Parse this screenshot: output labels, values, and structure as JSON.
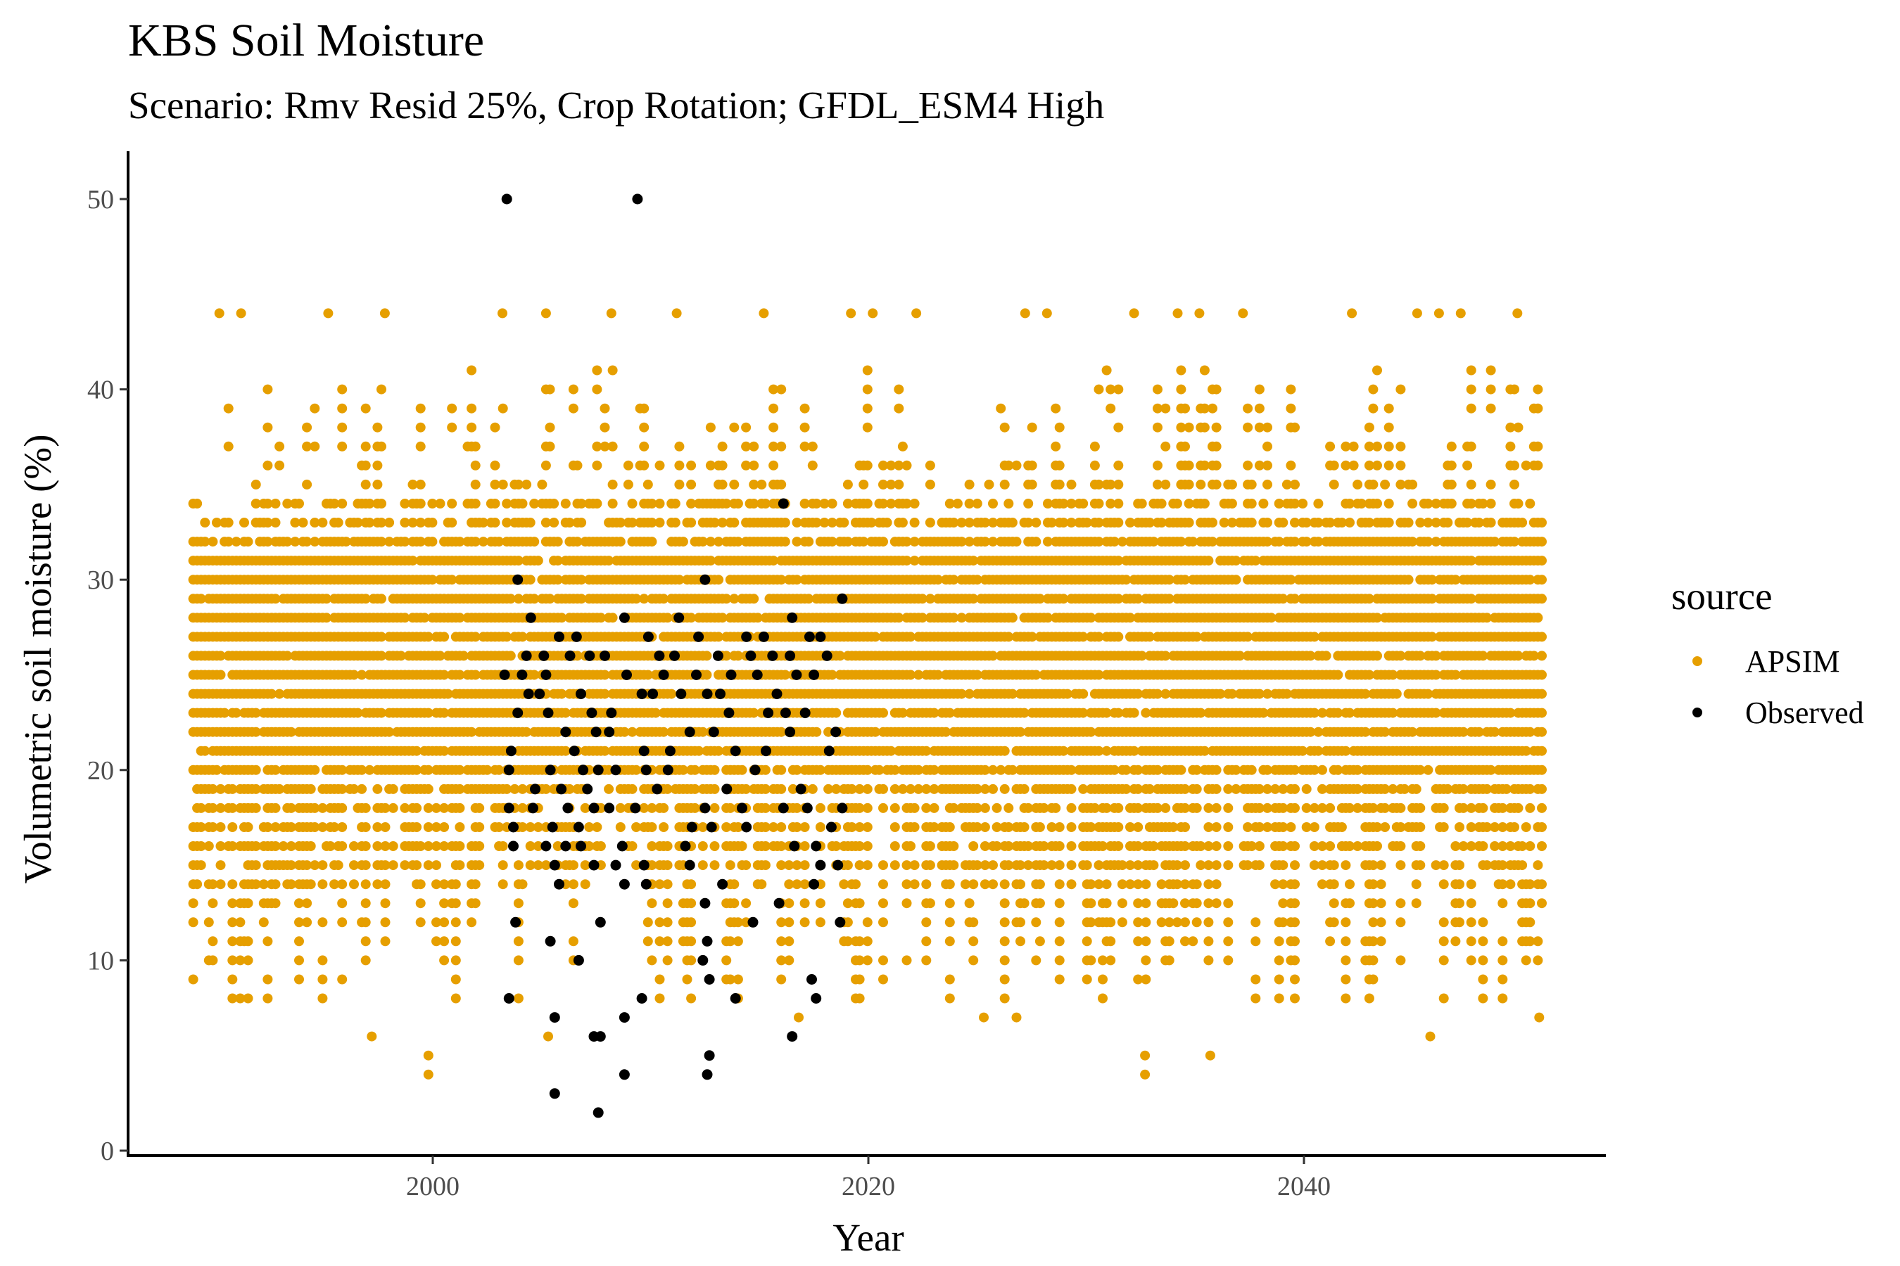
{
  "chart_data": {
    "type": "scatter",
    "title": "KBS Soil Moisture",
    "subtitle": "Scenario: Rmv Resid 25%, Crop Rotation; GFDL_ESM4 High",
    "xlabel": "Year",
    "ylabel": "Volumetric soil moisture (%)",
    "xlim": [
      1987,
      2054
    ],
    "ylim": [
      0,
      52
    ],
    "x_ticks": [
      2000,
      2020,
      2040
    ],
    "y_ticks": [
      0,
      10,
      20,
      30,
      40,
      50
    ],
    "grid": false,
    "legend": {
      "title": "source",
      "placement": "right",
      "entries": [
        {
          "label": "APSIM",
          "color": "#E69F00"
        },
        {
          "label": "Observed",
          "color": "#000000"
        }
      ]
    },
    "series": [
      {
        "name": "APSIM",
        "color": "#E69F00",
        "x_range": [
          1989,
          2051
        ],
        "core_band": [
          20,
          32
        ],
        "typical_min": 8,
        "typical_max": 44,
        "min_points": [
          [
            1999.8,
            4
          ],
          [
            1999.8,
            5
          ],
          [
            1997.2,
            6
          ],
          [
            2005.3,
            6
          ],
          [
            2032.7,
            4
          ],
          [
            2032.7,
            5
          ],
          [
            2035.7,
            5
          ],
          [
            2045.8,
            6
          ],
          [
            2026.8,
            7
          ],
          [
            2050.8,
            7
          ],
          [
            2025.3,
            7
          ],
          [
            2016.8,
            7
          ]
        ],
        "max_points": [
          [
            1990.2,
            44
          ],
          [
            1991.2,
            44
          ],
          [
            1995.2,
            44
          ],
          [
            1997.8,
            44
          ],
          [
            2003.2,
            44
          ],
          [
            2005.2,
            44
          ],
          [
            2008.2,
            44
          ],
          [
            2011.2,
            44
          ],
          [
            2015.2,
            44
          ],
          [
            2019.2,
            44
          ],
          [
            2020.2,
            44
          ],
          [
            2022.2,
            44
          ],
          [
            2027.2,
            44
          ],
          [
            2028.2,
            44
          ],
          [
            2032.2,
            44
          ],
          [
            2034.2,
            44
          ],
          [
            2035.2,
            44
          ],
          [
            2037.2,
            44
          ],
          [
            2042.2,
            44
          ],
          [
            2045.2,
            44
          ],
          [
            2046.2,
            44
          ],
          [
            2047.2,
            44
          ],
          [
            2049.8,
            44
          ]
        ]
      },
      {
        "name": "Observed",
        "color": "#000000",
        "points": [
          [
            2003.4,
            50
          ],
          [
            2009.4,
            50
          ],
          [
            2016.1,
            34
          ],
          [
            2018.8,
            29
          ],
          [
            2003.9,
            30
          ],
          [
            2012.5,
            30
          ],
          [
            2004.5,
            28
          ],
          [
            2008.8,
            28
          ],
          [
            2011.3,
            28
          ],
          [
            2016.5,
            28
          ],
          [
            2005.8,
            27
          ],
          [
            2006.6,
            27
          ],
          [
            2009.9,
            27
          ],
          [
            2012.2,
            27
          ],
          [
            2014.4,
            27
          ],
          [
            2015.2,
            27
          ],
          [
            2017.3,
            27
          ],
          [
            2017.8,
            27
          ],
          [
            2004.3,
            26
          ],
          [
            2005.1,
            26
          ],
          [
            2006.3,
            26
          ],
          [
            2007.2,
            26
          ],
          [
            2007.9,
            26
          ],
          [
            2010.4,
            26
          ],
          [
            2011.1,
            26
          ],
          [
            2013.1,
            26
          ],
          [
            2014.6,
            26
          ],
          [
            2015.6,
            26
          ],
          [
            2016.4,
            26
          ],
          [
            2018.1,
            26
          ],
          [
            2003.3,
            25
          ],
          [
            2004.1,
            25
          ],
          [
            2005.2,
            25
          ],
          [
            2008.9,
            25
          ],
          [
            2010.6,
            25
          ],
          [
            2012.1,
            25
          ],
          [
            2013.7,
            25
          ],
          [
            2014.9,
            25
          ],
          [
            2016.7,
            25
          ],
          [
            2017.5,
            25
          ],
          [
            2004.4,
            24
          ],
          [
            2004.9,
            24
          ],
          [
            2006.8,
            24
          ],
          [
            2009.6,
            24
          ],
          [
            2010.1,
            24
          ],
          [
            2011.4,
            24
          ],
          [
            2012.6,
            24
          ],
          [
            2013.2,
            24
          ],
          [
            2015.8,
            24
          ],
          [
            2003.9,
            23
          ],
          [
            2005.3,
            23
          ],
          [
            2007.3,
            23
          ],
          [
            2008.2,
            23
          ],
          [
            2013.6,
            23
          ],
          [
            2015.4,
            23
          ],
          [
            2016.2,
            23
          ],
          [
            2017.1,
            23
          ],
          [
            2006.1,
            22
          ],
          [
            2007.5,
            22
          ],
          [
            2008.1,
            22
          ],
          [
            2011.8,
            22
          ],
          [
            2012.9,
            22
          ],
          [
            2016.4,
            22
          ],
          [
            2018.5,
            22
          ],
          [
            2003.6,
            21
          ],
          [
            2006.5,
            21
          ],
          [
            2009.7,
            21
          ],
          [
            2010.9,
            21
          ],
          [
            2013.9,
            21
          ],
          [
            2015.3,
            21
          ],
          [
            2018.2,
            21
          ],
          [
            2003.5,
            20
          ],
          [
            2005.4,
            20
          ],
          [
            2006.9,
            20
          ],
          [
            2007.6,
            20
          ],
          [
            2008.4,
            20
          ],
          [
            2009.8,
            20
          ],
          [
            2010.8,
            20
          ],
          [
            2014.8,
            20
          ],
          [
            2004.7,
            19
          ],
          [
            2005.9,
            19
          ],
          [
            2007.1,
            19
          ],
          [
            2010.3,
            19
          ],
          [
            2013.5,
            19
          ],
          [
            2016.9,
            19
          ],
          [
            2003.5,
            18
          ],
          [
            2004.6,
            18
          ],
          [
            2006.2,
            18
          ],
          [
            2007.4,
            18
          ],
          [
            2008.1,
            18
          ],
          [
            2009.3,
            18
          ],
          [
            2012.5,
            18
          ],
          [
            2014.2,
            18
          ],
          [
            2016.1,
            18
          ],
          [
            2017.2,
            18
          ],
          [
            2018.8,
            18
          ],
          [
            2003.7,
            17
          ],
          [
            2005.5,
            17
          ],
          [
            2006.7,
            17
          ],
          [
            2011.9,
            17
          ],
          [
            2012.8,
            17
          ],
          [
            2014.4,
            17
          ],
          [
            2018.3,
            17
          ],
          [
            2003.7,
            16
          ],
          [
            2005.2,
            16
          ],
          [
            2006.1,
            16
          ],
          [
            2006.8,
            16
          ],
          [
            2008.7,
            16
          ],
          [
            2011.6,
            16
          ],
          [
            2016.6,
            16
          ],
          [
            2017.6,
            16
          ],
          [
            2005.6,
            15
          ],
          [
            2007.4,
            15
          ],
          [
            2008.4,
            15
          ],
          [
            2009.7,
            15
          ],
          [
            2011.8,
            15
          ],
          [
            2017.8,
            15
          ],
          [
            2018.6,
            15
          ],
          [
            2005.8,
            14
          ],
          [
            2008.8,
            14
          ],
          [
            2009.8,
            14
          ],
          [
            2013.3,
            14
          ],
          [
            2017.5,
            14
          ],
          [
            2012.5,
            13
          ],
          [
            2015.9,
            13
          ],
          [
            2003.8,
            12
          ],
          [
            2007.7,
            12
          ],
          [
            2014.7,
            12
          ],
          [
            2018.7,
            12
          ],
          [
            2005.4,
            11
          ],
          [
            2012.6,
            11
          ],
          [
            2006.7,
            10
          ],
          [
            2012.4,
            10
          ],
          [
            2012.7,
            9
          ],
          [
            2017.4,
            9
          ],
          [
            2003.5,
            8
          ],
          [
            2009.6,
            8
          ],
          [
            2013.9,
            8
          ],
          [
            2017.6,
            8
          ],
          [
            2005.6,
            7
          ],
          [
            2008.8,
            7
          ],
          [
            2007.4,
            6
          ],
          [
            2007.7,
            6
          ],
          [
            2016.5,
            6
          ],
          [
            2012.7,
            5
          ],
          [
            2012.6,
            4
          ],
          [
            2008.8,
            4
          ],
          [
            2005.6,
            3
          ],
          [
            2007.6,
            2
          ]
        ]
      }
    ]
  }
}
